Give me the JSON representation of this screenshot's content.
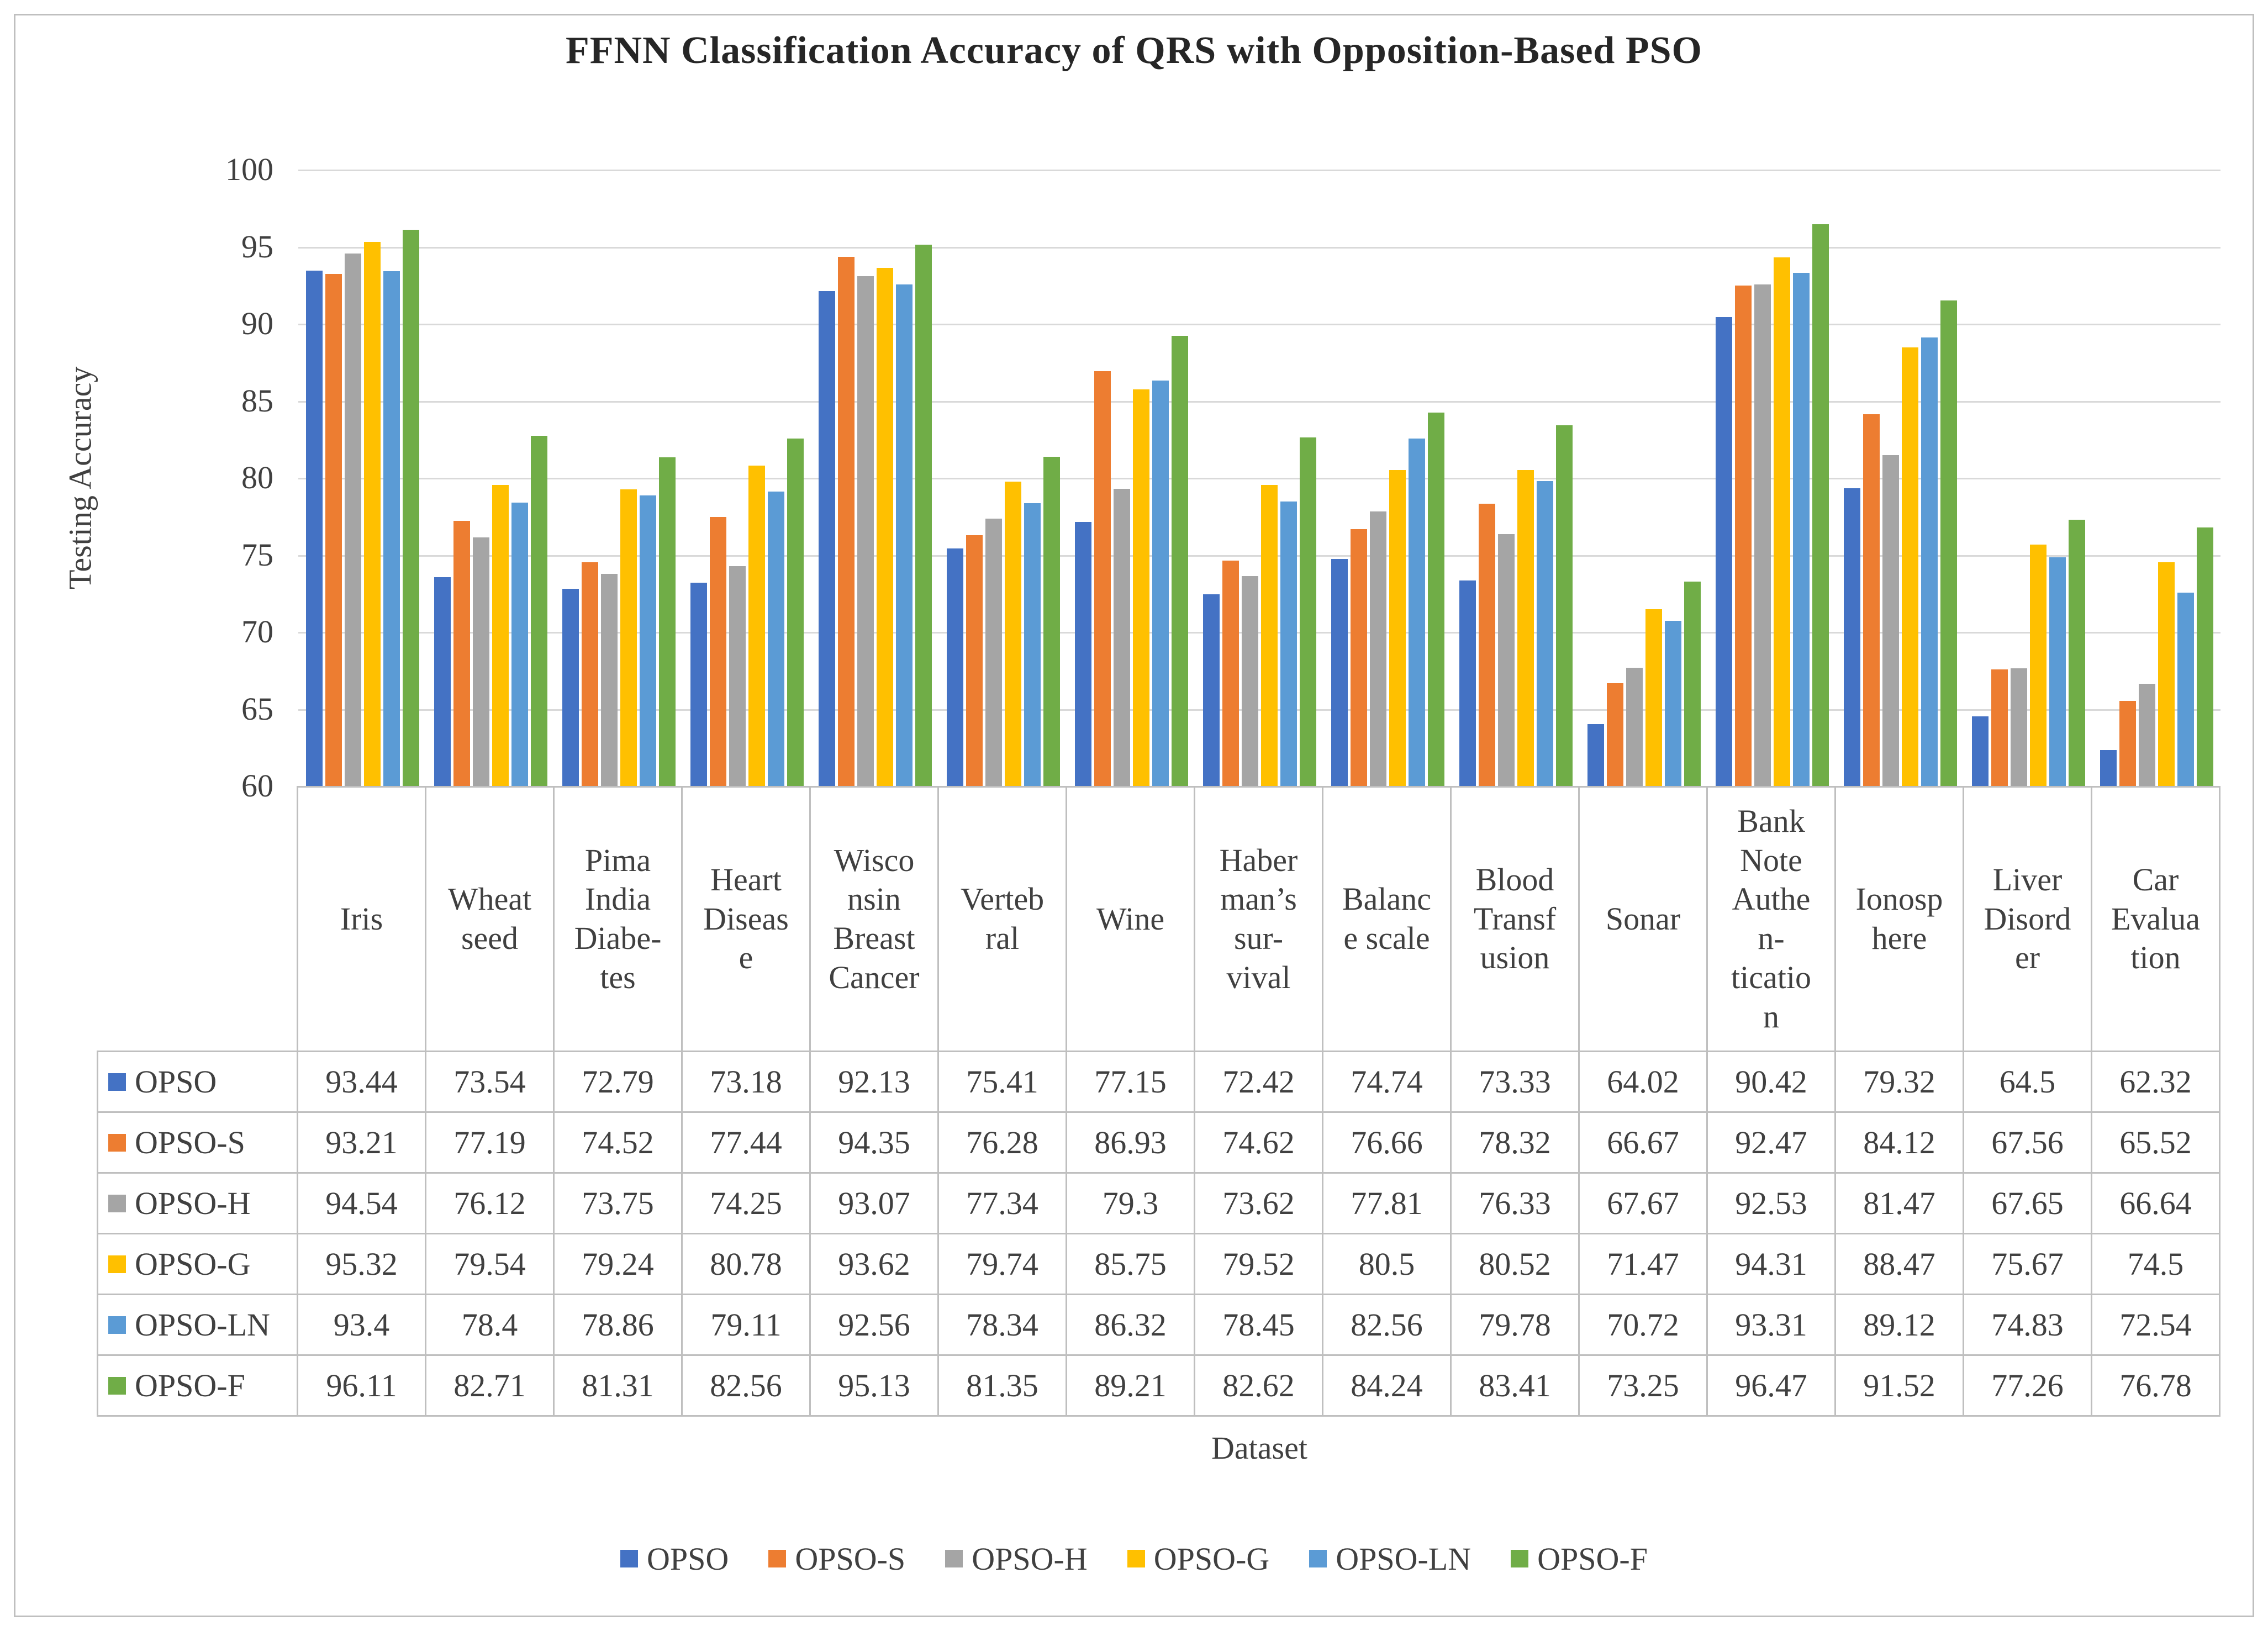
{
  "chart_data": {
    "type": "bar",
    "title": "FFNN Classification Accuracy of QRS with Opposition-Based PSO",
    "xlabel": "Dataset",
    "ylabel": "Testing Accuracy",
    "ylim": [
      60,
      100
    ],
    "ytick_step": 5,
    "yticks": [
      60,
      65,
      70,
      75,
      80,
      85,
      90,
      95,
      100
    ],
    "grid": true,
    "legend_position": "bottom",
    "categories": [
      "Iris",
      "Wheat seed",
      "Pima India Diabetes",
      "Heart Disease",
      "Wisconsin Breast Cancer",
      "Vertebral",
      "Wine",
      "Haberman's survival",
      "Balance scale",
      "Blood Transfusion",
      "Sonar",
      "Bank Note Authentication",
      "Ionosphere",
      "Liver Disorder",
      "Car Evaluation"
    ],
    "categories_display": [
      "Iris",
      "Wheat\nseed",
      "Pima\nIndia\nDiabe-\ntes",
      "Heart\nDiseas\ne",
      "Wisco\nnsin\nBreast\nCancer",
      "Verteb\nral",
      "Wine",
      "Haber\nman’s\nsur-\nvival",
      "Balanc\ne scale",
      "Blood\nTransf\nusion",
      "Sonar",
      "Bank\nNote\nAuthe\nn-\nticatio\nn",
      "Ionosp\nhere",
      "Liver\nDisord\ner",
      "Car\nEvalua\ntion"
    ],
    "series": [
      {
        "name": "OPSO",
        "color": "#4472C4",
        "values": [
          93.44,
          73.54,
          72.79,
          73.18,
          92.13,
          75.41,
          77.15,
          72.42,
          74.74,
          73.33,
          64.02,
          90.42,
          79.32,
          64.5,
          62.32
        ]
      },
      {
        "name": "OPSO-S",
        "color": "#ED7D31",
        "values": [
          93.21,
          77.19,
          74.52,
          77.44,
          94.35,
          76.28,
          86.93,
          74.62,
          76.66,
          78.32,
          66.67,
          92.47,
          84.12,
          67.56,
          65.52
        ]
      },
      {
        "name": "OPSO-H",
        "color": "#A5A5A5",
        "values": [
          94.54,
          76.12,
          73.75,
          74.25,
          93.07,
          77.34,
          79.3,
          73.62,
          77.81,
          76.33,
          67.67,
          92.53,
          81.47,
          67.65,
          66.64
        ]
      },
      {
        "name": "OPSO-G",
        "color": "#FFC000",
        "values": [
          95.32,
          79.54,
          79.24,
          80.78,
          93.62,
          79.74,
          85.75,
          79.52,
          80.5,
          80.52,
          71.47,
          94.31,
          88.47,
          75.67,
          74.5
        ]
      },
      {
        "name": "OPSO-LN",
        "color": "#5B9BD5",
        "values": [
          93.4,
          78.4,
          78.86,
          79.11,
          92.56,
          78.34,
          86.32,
          78.45,
          82.56,
          79.78,
          70.72,
          93.31,
          89.12,
          74.83,
          72.54
        ]
      },
      {
        "name": "OPSO-F",
        "color": "#70AD47",
        "values": [
          96.11,
          82.71,
          81.31,
          82.56,
          95.13,
          81.35,
          89.21,
          82.62,
          84.24,
          83.41,
          73.25,
          96.47,
          91.52,
          77.26,
          76.78
        ]
      }
    ]
  }
}
